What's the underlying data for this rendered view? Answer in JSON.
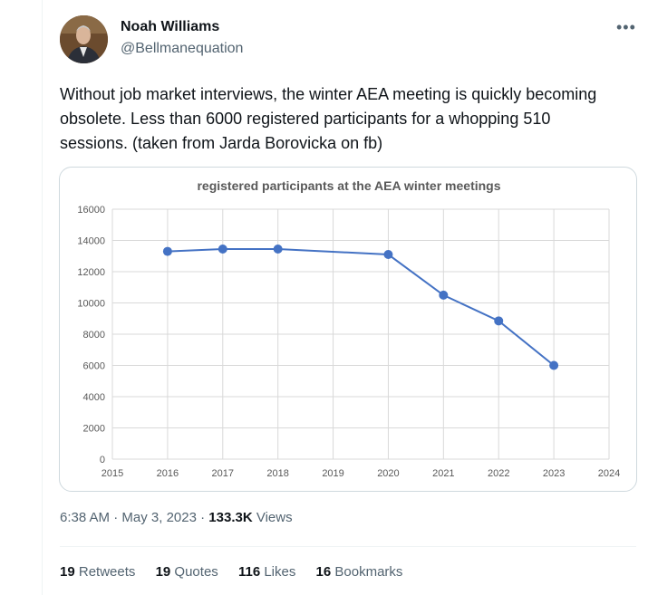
{
  "author": {
    "name": "Noah Williams",
    "handle": "@Bellmanequation"
  },
  "tweet": {
    "text": "Without job market interviews, the winter AEA meeting is quickly becoming obsolete. Less than 6000 registered participants for a whopping 510 sessions. (taken from Jarda Borovicka on fb)",
    "time": "6:38 AM",
    "separator": "·",
    "date": "May 3, 2023",
    "views_count": "133.3K",
    "views_label": "Views"
  },
  "engagement": {
    "retweets_count": "19",
    "retweets_label": "Retweets",
    "quotes_count": "19",
    "quotes_label": "Quotes",
    "likes_count": "116",
    "likes_label": "Likes",
    "bookmarks_count": "16",
    "bookmarks_label": "Bookmarks"
  },
  "icons": {
    "more": "more-horizontal-icon"
  },
  "chart_data": {
    "type": "line",
    "title": "registered participants at the AEA winter meetings",
    "x": [
      2016,
      2017,
      2018,
      2020,
      2021,
      2022,
      2023
    ],
    "y": [
      13300,
      13450,
      13450,
      13100,
      10500,
      8850,
      6000
    ],
    "xlim": [
      2015,
      2024
    ],
    "ylim": [
      0,
      16000
    ],
    "xticks": [
      "2015",
      "2016",
      "2017",
      "2018",
      "2019",
      "2020",
      "2021",
      "2022",
      "2023",
      "2024"
    ],
    "yticks": [
      "0",
      "2000",
      "4000",
      "6000",
      "8000",
      "10000",
      "12000",
      "14000",
      "16000"
    ],
    "grid": true,
    "color": "#4472c4"
  }
}
